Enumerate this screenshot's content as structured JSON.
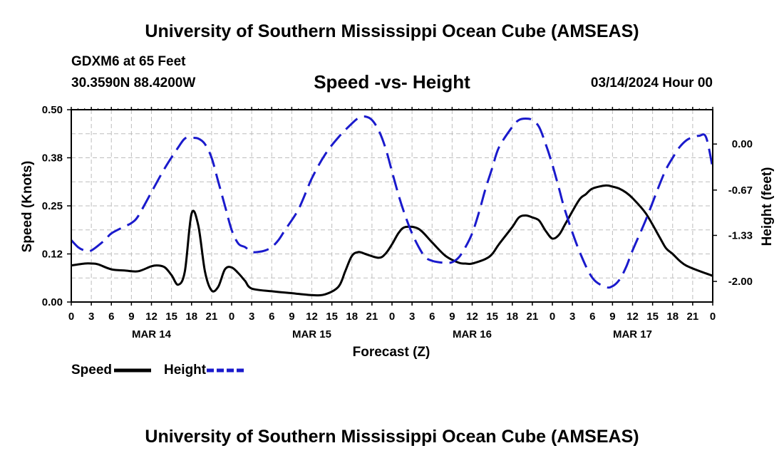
{
  "header": {
    "title": "University of Southern Mississippi Ocean Cube (AMSEAS)",
    "station": "GDXM6 at 65 Feet",
    "coords": "30.3590N  88.4200W",
    "subtitle": "Speed -vs- Height",
    "datetime": "03/14/2024 Hour 00"
  },
  "footer": {
    "title": "University of Southern Mississippi Ocean Cube (AMSEAS)"
  },
  "colors": {
    "speed": "#000000",
    "height": "#1a1acc",
    "grid": "#bdbdbd"
  },
  "chart_data": {
    "type": "line",
    "title": "Speed -vs- Height",
    "xlabel": "Forecast (Z)",
    "ylabel": "Speed (Knots)",
    "ylabel_right": "Height (feet)",
    "xlim": [
      0,
      96
    ],
    "ylim": [
      0,
      0.5
    ],
    "ylim_right": [
      -2.3,
      0.5
    ],
    "grid": true,
    "x_ticks": [
      0,
      3,
      6,
      9,
      12,
      15,
      18,
      21,
      24,
      27,
      30,
      33,
      36,
      39,
      42,
      45,
      48,
      51,
      54,
      57,
      60,
      63,
      66,
      69,
      72,
      75,
      78,
      81,
      84,
      87,
      90,
      93,
      96
    ],
    "x_tick_labels": [
      "0",
      "3",
      "6",
      "9",
      "12",
      "15",
      "18",
      "21",
      "0",
      "3",
      "6",
      "9",
      "12",
      "15",
      "18",
      "21",
      "0",
      "3",
      "6",
      "9",
      "12",
      "15",
      "18",
      "21",
      "0",
      "3",
      "6",
      "9",
      "12",
      "15",
      "18",
      "21",
      "0"
    ],
    "date_labels": [
      {
        "x": 12,
        "label": "MAR 14"
      },
      {
        "x": 36,
        "label": "MAR 15"
      },
      {
        "x": 60,
        "label": "MAR 16"
      },
      {
        "x": 84,
        "label": "MAR 17"
      }
    ],
    "y_ticks": [
      0,
      0.125,
      0.25,
      0.375,
      0.5
    ],
    "y_tick_labels": [
      "0.00",
      "0.12",
      "0.25",
      "0.38",
      "0.50"
    ],
    "y_ticks_right": [
      0,
      -0.67,
      -1.33,
      -2.0
    ],
    "y_tick_labels_right": [
      "0.00",
      "-0.67",
      "-1.33",
      "-2.00"
    ],
    "legend": {
      "position": "bottom-left",
      "entries": [
        "Speed",
        "Height"
      ]
    },
    "series": [
      {
        "name": "Speed",
        "axis": "left",
        "style": "solid",
        "x": [
          0,
          2,
          3,
          4,
          6,
          8,
          10,
          12,
          13,
          14,
          15,
          16,
          17,
          18,
          19,
          20,
          21,
          22,
          23,
          24,
          25,
          26,
          27,
          30,
          33,
          36,
          38,
          40,
          41,
          42,
          43,
          44,
          46,
          47,
          48,
          49,
          50,
          52,
          54,
          56,
          58,
          59,
          60,
          62,
          63,
          64,
          66,
          67,
          68,
          69,
          70,
          71,
          72,
          73,
          74,
          76,
          77,
          78,
          80,
          81,
          82,
          83,
          84,
          86,
          88,
          89,
          90,
          92,
          96
        ],
        "y": [
          0.095,
          0.1,
          0.1,
          0.098,
          0.085,
          0.082,
          0.08,
          0.093,
          0.095,
          0.09,
          0.07,
          0.045,
          0.08,
          0.23,
          0.2,
          0.08,
          0.03,
          0.04,
          0.085,
          0.09,
          0.075,
          0.055,
          0.035,
          0.028,
          0.023,
          0.018,
          0.02,
          0.04,
          0.08,
          0.12,
          0.13,
          0.125,
          0.115,
          0.125,
          0.15,
          0.18,
          0.195,
          0.19,
          0.155,
          0.12,
          0.102,
          0.1,
          0.1,
          0.112,
          0.125,
          0.15,
          0.195,
          0.22,
          0.225,
          0.22,
          0.212,
          0.185,
          0.165,
          0.175,
          0.205,
          0.265,
          0.28,
          0.295,
          0.303,
          0.3,
          0.295,
          0.285,
          0.27,
          0.23,
          0.17,
          0.14,
          0.125,
          0.095,
          0.068
        ]
      },
      {
        "name": "Height",
        "axis": "right",
        "style": "dashed",
        "x": [
          0,
          1,
          2,
          3,
          5,
          6,
          8,
          9,
          10,
          12,
          14,
          16,
          17,
          18,
          19,
          20,
          21,
          22,
          23,
          24,
          25,
          26,
          27,
          28,
          29,
          30,
          31,
          32,
          34,
          36,
          38,
          40,
          42,
          43,
          44,
          45,
          46,
          47,
          48,
          49,
          50,
          51,
          52,
          53,
          54,
          55,
          56,
          57,
          58,
          59,
          60,
          61,
          62,
          63,
          64,
          66,
          67,
          68,
          69,
          70,
          71,
          72,
          73,
          74,
          76,
          78,
          80,
          81,
          82,
          83,
          84,
          86,
          88,
          89,
          90,
          91,
          92,
          93,
          94,
          95,
          96
        ],
        "y": [
          -1.4,
          -1.5,
          -1.55,
          -1.55,
          -1.4,
          -1.3,
          -1.2,
          -1.15,
          -1.05,
          -0.7,
          -0.35,
          -0.05,
          0.08,
          0.09,
          0.08,
          0.0,
          -0.2,
          -0.55,
          -0.9,
          -1.25,
          -1.45,
          -1.5,
          -1.57,
          -1.57,
          -1.55,
          -1.5,
          -1.4,
          -1.25,
          -0.95,
          -0.5,
          -0.15,
          0.1,
          0.3,
          0.38,
          0.4,
          0.35,
          0.2,
          -0.05,
          -0.4,
          -0.75,
          -1.05,
          -1.3,
          -1.5,
          -1.65,
          -1.7,
          -1.72,
          -1.73,
          -1.72,
          -1.65,
          -1.5,
          -1.3,
          -1.0,
          -0.65,
          -0.35,
          -0.05,
          0.25,
          0.35,
          0.37,
          0.35,
          0.25,
          0.0,
          -0.3,
          -0.65,
          -1.0,
          -1.55,
          -1.95,
          -2.08,
          -2.07,
          -1.98,
          -1.8,
          -1.55,
          -1.1,
          -0.6,
          -0.37,
          -0.2,
          -0.05,
          0.05,
          0.1,
          0.12,
          0.1,
          -0.35
        ]
      }
    ]
  }
}
